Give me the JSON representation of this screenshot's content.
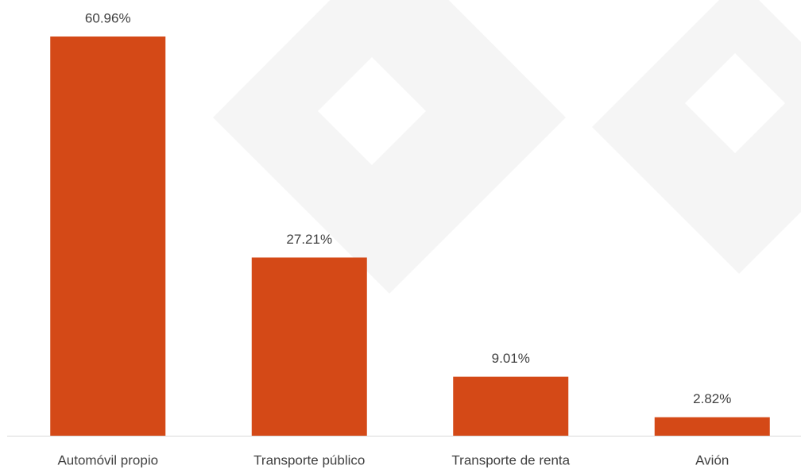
{
  "chart_data": {
    "type": "bar",
    "categories": [
      "Automóvil propio",
      "Transporte público",
      "Transporte de renta",
      "Avión"
    ],
    "values": [
      60.96,
      27.21,
      9.01,
      2.82
    ],
    "value_labels": [
      "60.96%",
      "27.21%",
      "9.01%",
      "2.82%"
    ],
    "color": "#d44917"
  }
}
